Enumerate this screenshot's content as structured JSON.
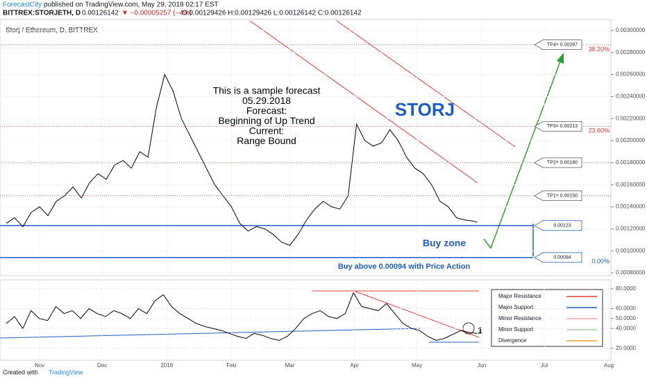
{
  "header": {
    "publisher": "ForecastCity",
    "published": "published on TradingView.com, May 29, 2018 02:17 EST",
    "symbol": "BITTREX:STORJETH, D",
    "last": "0.00126142",
    "change": "▼ −0.00005257 (−4%)",
    "ohlc": "O:0.00129426 H:0.00129426 L:0.00126142 C:0.00126142"
  },
  "chart_data": [
    {
      "type": "line",
      "pane_label": "Storj / Ethereum, D, BITTREX",
      "color": "#000000",
      "x": [
        4,
        8,
        12,
        16,
        20,
        24,
        28,
        32,
        36,
        40,
        44,
        48,
        52,
        56,
        60,
        64,
        68,
        72,
        76,
        80,
        84,
        88,
        92,
        96,
        100,
        104,
        108,
        112,
        116,
        120,
        124,
        128,
        132,
        136,
        140,
        144,
        148,
        152,
        156,
        160,
        164,
        168,
        172,
        176,
        180,
        184,
        188,
        192,
        196,
        200,
        204,
        208,
        212,
        216,
        220,
        224,
        228,
        230
      ],
      "values": [
        0.00125,
        0.0013,
        0.00122,
        0.00135,
        0.0014,
        0.00132,
        0.00145,
        0.0015,
        0.00158,
        0.00148,
        0.00162,
        0.0017,
        0.00165,
        0.00178,
        0.00182,
        0.00175,
        0.0019,
        0.00185,
        0.0023,
        0.0026,
        0.00245,
        0.0022,
        0.00205,
        0.0019,
        0.00175,
        0.0016,
        0.0015,
        0.0014,
        0.00125,
        0.00118,
        0.00122,
        0.0012,
        0.00115,
        0.00108,
        0.00105,
        0.00115,
        0.00128,
        0.00138,
        0.00145,
        0.0014,
        0.00138,
        0.0015,
        0.00215,
        0.002,
        0.00195,
        0.00198,
        0.0021,
        0.002,
        0.00185,
        0.00175,
        0.0017,
        0.0016,
        0.00145,
        0.0014,
        0.0013,
        0.00128,
        0.00127,
        0.00126
      ],
      "xlim": [
        1,
        294
      ],
      "xticks": [
        {
          "value": 20,
          "label": "Nov"
        },
        {
          "value": 50,
          "label": "Dec"
        },
        {
          "value": 81,
          "label": "2018"
        },
        {
          "value": 112,
          "label": "Feb"
        },
        {
          "value": 140,
          "label": "Mar"
        },
        {
          "value": 171,
          "label": "Apr"
        },
        {
          "value": 201,
          "label": "May"
        },
        {
          "value": 232,
          "label": "Jun"
        },
        {
          "value": 262,
          "label": "Jul"
        },
        {
          "value": 293,
          "label": "Aug"
        }
      ],
      "ylim": [
        0.000775,
        0.0031
      ],
      "yticks": [
        {
          "value": 0.003,
          "label": "0.00300000"
        },
        {
          "value": 0.0028,
          "label": "0.00280000"
        },
        {
          "value": 0.0026,
          "label": "0.00260000"
        },
        {
          "value": 0.0024,
          "label": "0.00240000"
        },
        {
          "value": 0.0022,
          "label": "0.00220000"
        },
        {
          "value": 0.002,
          "label": "0.00200000"
        },
        {
          "value": 0.0018,
          "label": "0.00180000"
        },
        {
          "value": 0.0016,
          "label": "0.00160000"
        },
        {
          "value": 0.0014,
          "label": "0.00140000"
        },
        {
          "value": 0.0012,
          "label": "0.00120000"
        },
        {
          "value": 0.001,
          "label": "0.00100000"
        },
        {
          "value": 0.0008,
          "label": "0.00080000"
        }
      ],
      "levels": [
        {
          "value": 0.00287,
          "label": "TP4= 0.00287",
          "fib": "38.20%",
          "color": "#e53935"
        },
        {
          "value": 0.00213,
          "label": "TP3= 0.00213",
          "fib": "23.60%",
          "color": "#e53935"
        },
        {
          "value": 0.0018,
          "label": "TP2= 0.00180",
          "color": "#e53935"
        },
        {
          "value": 0.0015,
          "label": "TP1= 0.00150",
          "color": "#e53935"
        },
        {
          "value": 0.00123,
          "label": "0.00123",
          "color": "#1e5bc6"
        },
        {
          "value": 0.00094,
          "label": "0.00094",
          "fib": "0.00%",
          "color": "#1e5bc6"
        }
      ],
      "note": [
        "This is a sample forecast",
        "05.29.2018",
        "Forecast:",
        "Beginning of Up Trend",
        "Current:",
        "Range Bound"
      ],
      "symbol_label": "STORJ",
      "buy_zone": "Buy zone",
      "buy_note": "Buy above 0.00094 with Price Action"
    },
    {
      "type": "line",
      "color": "#000000",
      "values": [
        45,
        52,
        40,
        58,
        50,
        48,
        62,
        55,
        58,
        50,
        60,
        55,
        52,
        58,
        55,
        50,
        60,
        55,
        68,
        74,
        62,
        55,
        50,
        45,
        42,
        40,
        38,
        35,
        32,
        30,
        35,
        33,
        30,
        28,
        32,
        40,
        50,
        55,
        58,
        52,
        50,
        55,
        76,
        62,
        60,
        58,
        65,
        55,
        45,
        40,
        38,
        32,
        28,
        30,
        34,
        38,
        36,
        35
      ],
      "ylim": [
        8,
        89
      ],
      "yticks": [
        {
          "value": 80,
          "label": "80.0000"
        },
        {
          "value": 60,
          "label": "60.0000"
        },
        {
          "value": 50,
          "label": "50.0000"
        },
        {
          "value": 40,
          "label": "40.0000"
        },
        {
          "value": 20,
          "label": "20.0000"
        }
      ],
      "marker_label": "1",
      "legend": [
        {
          "name": "Major Resistance",
          "color": "#e53935"
        },
        {
          "name": "Major Support",
          "color": "#1e5bc6"
        },
        {
          "name": "Minor Resistance",
          "color": "#f4a3a3"
        },
        {
          "name": "Minor Support",
          "color": "#a5d6a7"
        },
        {
          "name": "Divergence",
          "color": "#f5a623"
        }
      ]
    }
  ],
  "footer": {
    "created": "Created with",
    "brand": "TradingView"
  }
}
